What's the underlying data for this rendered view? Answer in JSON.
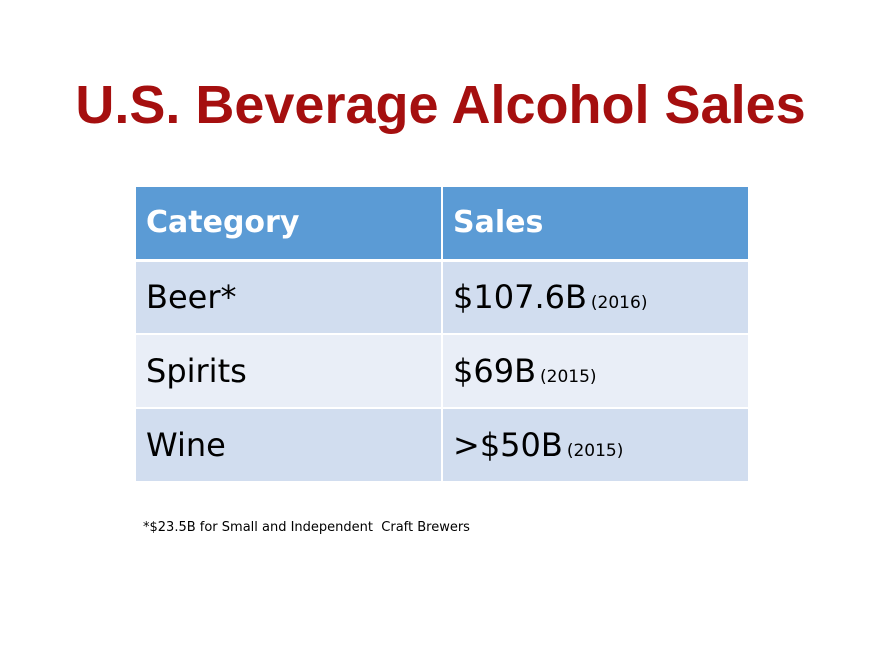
{
  "slide": {
    "title": "U.S. Beverage Alcohol Sales"
  },
  "table": {
    "headers": [
      "Category",
      "Sales"
    ],
    "rows": [
      {
        "category": "Beer*",
        "sales": "$107.6B",
        "year": "(2016)"
      },
      {
        "category": "Spirits",
        "sales": "$69B",
        "year": "(2015)"
      },
      {
        "category": "Wine",
        "sales": ">$50B",
        "year": "(2015)"
      }
    ]
  },
  "footnote": "*$23.5B for Small and Independent  Craft Brewers",
  "colors": {
    "title": "#a50f0f",
    "header_bg": "#5b9bd5",
    "row_odd_bg": "#d1ddef",
    "row_even_bg": "#e9eef7"
  }
}
